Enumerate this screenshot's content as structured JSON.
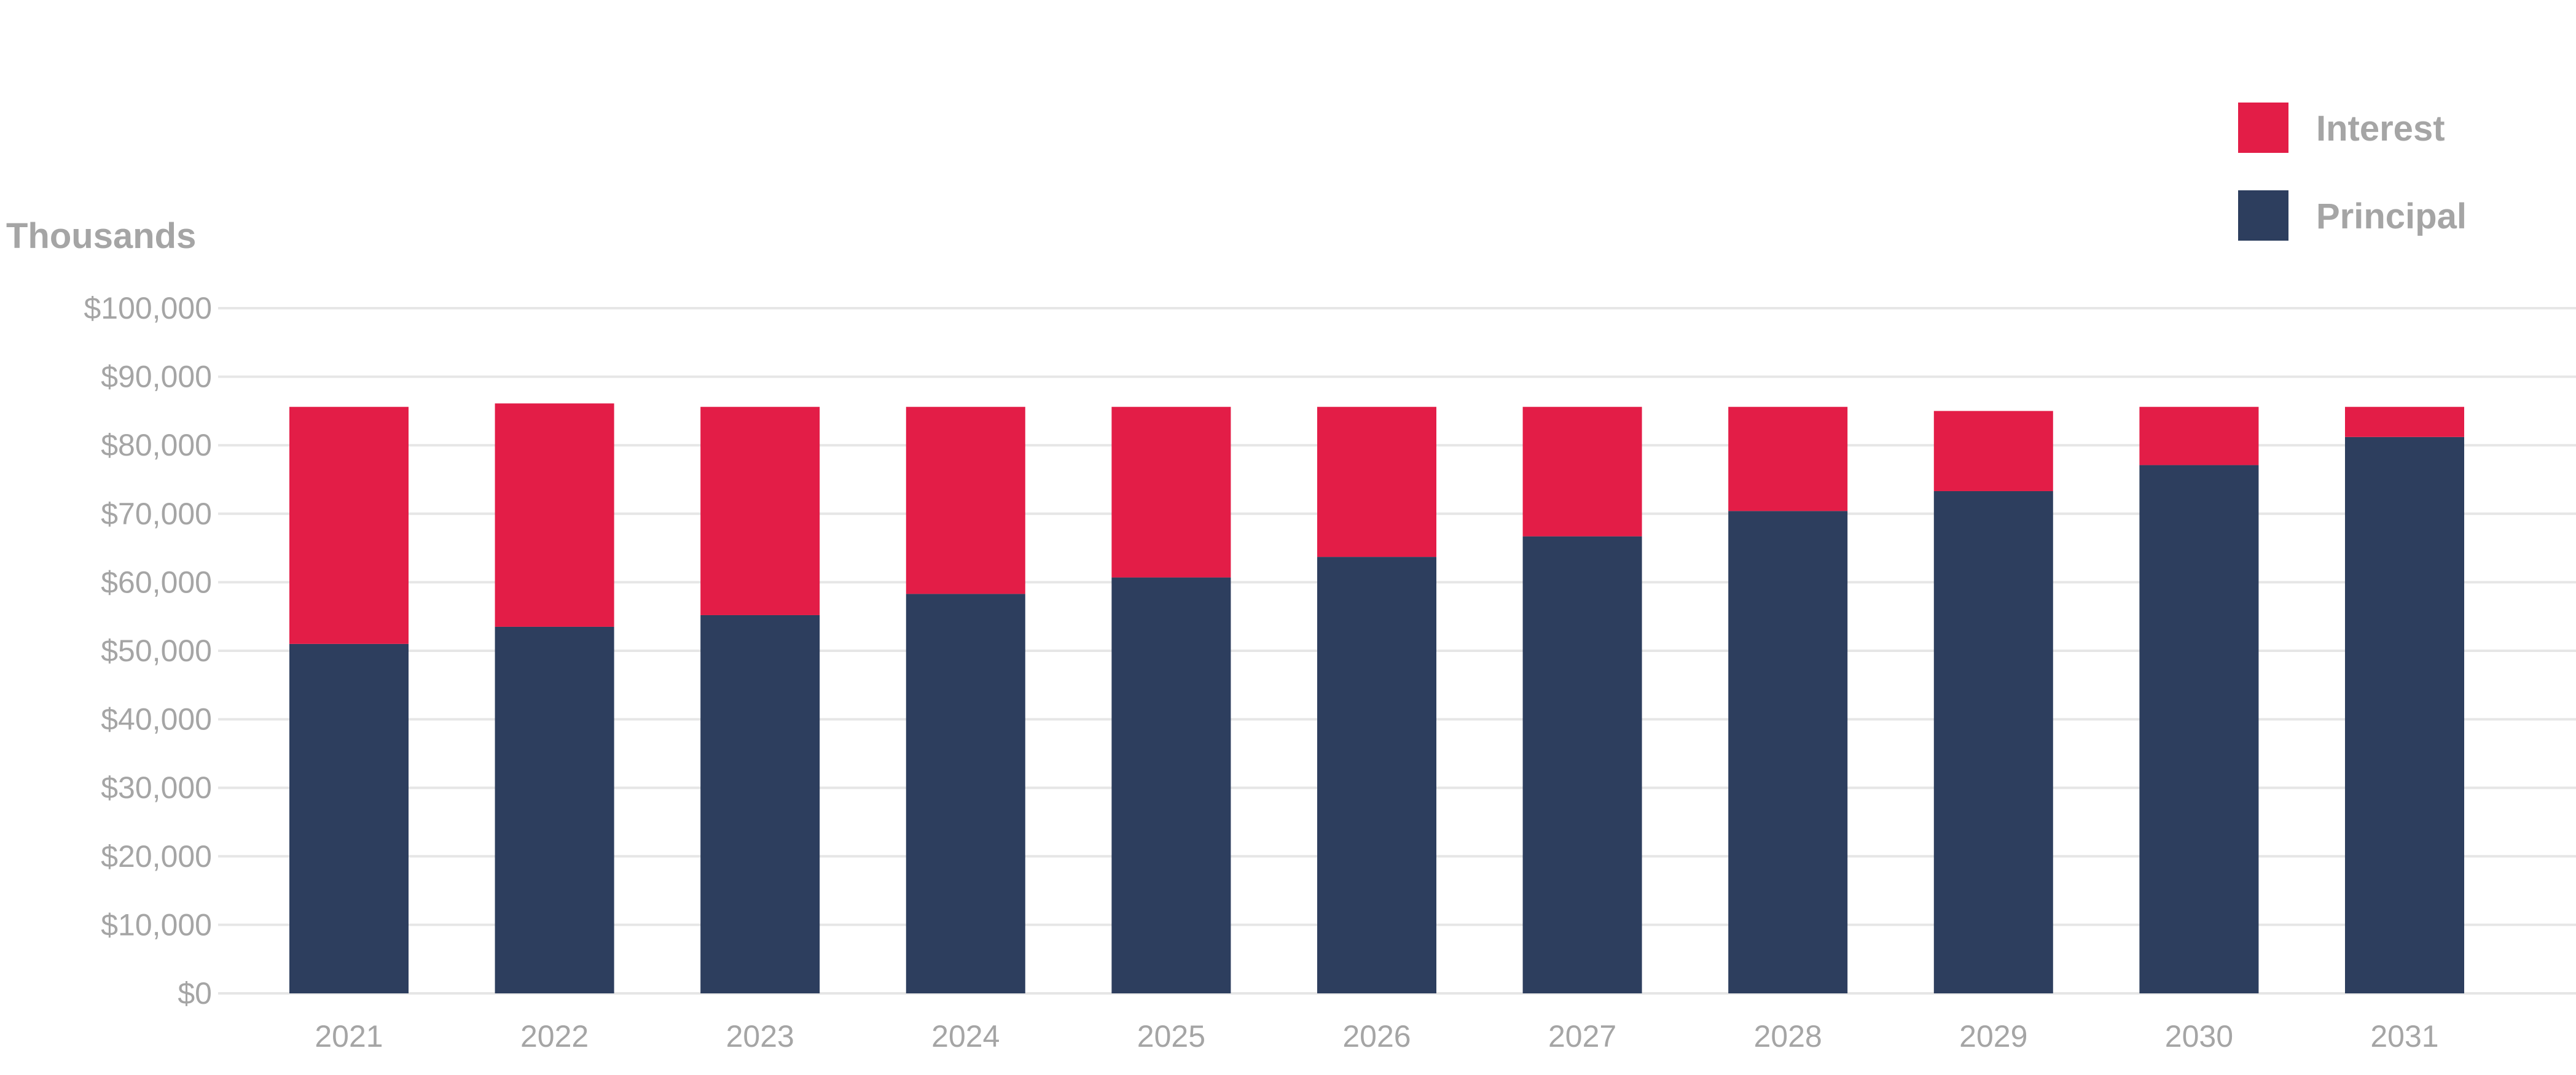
{
  "chart_data": {
    "type": "bar",
    "stacked": true,
    "ylabel": "Thousands",
    "ylim": [
      0,
      100000
    ],
    "ytick_values": [
      0,
      10000,
      20000,
      30000,
      40000,
      50000,
      60000,
      70000,
      80000,
      90000,
      100000
    ],
    "ytick_labels": [
      "$0",
      "$10,000",
      "$20,000",
      "$30,000",
      "$40,000",
      "$50,000",
      "$60,000",
      "$70,000",
      "$80,000",
      "$90,000",
      "$100,000"
    ],
    "grid": true,
    "legend_position": "top-right",
    "categories": [
      "2021",
      "2022",
      "2023",
      "2024",
      "2025",
      "2026",
      "2027",
      "2028",
      "2029",
      "2030",
      "2031"
    ],
    "series": [
      {
        "name": "Principal",
        "color": "#2d3e5e",
        "values": [
          51000,
          53500,
          55200,
          58300,
          60700,
          63700,
          66700,
          70400,
          73300,
          77100,
          81200
        ]
      },
      {
        "name": "Interest",
        "color": "#e31d47",
        "values": [
          34600,
          32600,
          30400,
          27300,
          24900,
          21900,
          18900,
          15200,
          11700,
          8500,
          4400
        ]
      }
    ],
    "legend_order": [
      "Interest",
      "Principal"
    ]
  }
}
